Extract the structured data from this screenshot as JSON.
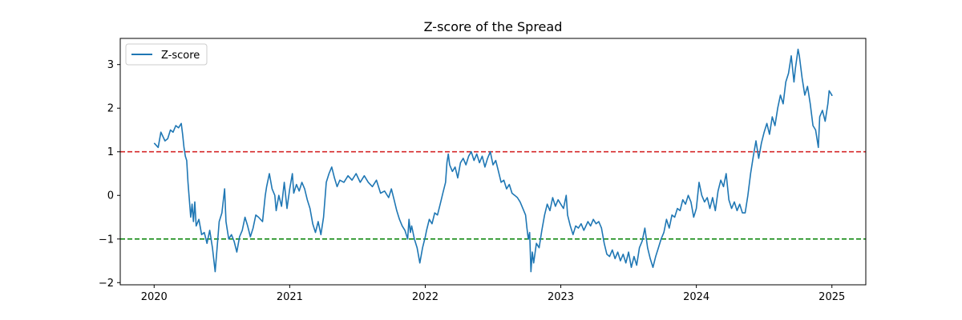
{
  "chart_data": {
    "type": "line",
    "title": "Z-score of the Spread",
    "xlabel": "",
    "ylabel": "",
    "xlim": [
      2019.75,
      2025.25
    ],
    "ylim": [
      -2.05,
      3.6
    ],
    "x_ticks": [
      2020,
      2021,
      2022,
      2023,
      2024,
      2025
    ],
    "x_tick_labels": [
      "2020",
      "2021",
      "2022",
      "2023",
      "2024",
      "2025"
    ],
    "y_ticks": [
      -2,
      -1,
      0,
      1,
      2,
      3
    ],
    "y_tick_labels": [
      "−2",
      "−1",
      "0",
      "1",
      "2",
      "3"
    ],
    "legend": {
      "position": "upper-left",
      "entries": [
        "Z-score"
      ]
    },
    "series": [
      {
        "name": "Z-score",
        "color": "#1f77b4",
        "points": [
          [
            2020.0,
            1.2
          ],
          [
            2020.03,
            1.1
          ],
          [
            2020.05,
            1.45
          ],
          [
            2020.08,
            1.25
          ],
          [
            2020.1,
            1.3
          ],
          [
            2020.12,
            1.5
          ],
          [
            2020.14,
            1.45
          ],
          [
            2020.16,
            1.6
          ],
          [
            2020.18,
            1.55
          ],
          [
            2020.2,
            1.65
          ],
          [
            2020.21,
            1.4
          ],
          [
            2020.22,
            1.1
          ],
          [
            2020.23,
            0.9
          ],
          [
            2020.24,
            0.8
          ],
          [
            2020.25,
            0.3
          ],
          [
            2020.27,
            -0.5
          ],
          [
            2020.28,
            -0.2
          ],
          [
            2020.29,
            -0.6
          ],
          [
            2020.3,
            -0.15
          ],
          [
            2020.31,
            -0.7
          ],
          [
            2020.33,
            -0.55
          ],
          [
            2020.35,
            -0.9
          ],
          [
            2020.37,
            -0.85
          ],
          [
            2020.39,
            -1.1
          ],
          [
            2020.41,
            -0.8
          ],
          [
            2020.43,
            -1.2
          ],
          [
            2020.45,
            -1.75
          ],
          [
            2020.47,
            -1.0
          ],
          [
            2020.48,
            -0.6
          ],
          [
            2020.5,
            -0.4
          ],
          [
            2020.52,
            0.15
          ],
          [
            2020.53,
            -0.6
          ],
          [
            2020.55,
            -1.0
          ],
          [
            2020.57,
            -0.9
          ],
          [
            2020.59,
            -1.05
          ],
          [
            2020.61,
            -1.3
          ],
          [
            2020.63,
            -0.95
          ],
          [
            2020.65,
            -0.8
          ],
          [
            2020.67,
            -0.5
          ],
          [
            2020.69,
            -0.7
          ],
          [
            2020.71,
            -0.95
          ],
          [
            2020.73,
            -0.75
          ],
          [
            2020.75,
            -0.45
          ],
          [
            2020.77,
            -0.5
          ],
          [
            2020.8,
            -0.6
          ],
          [
            2020.82,
            0.0
          ],
          [
            2020.83,
            0.2
          ],
          [
            2020.85,
            0.5
          ],
          [
            2020.87,
            0.15
          ],
          [
            2020.89,
            0.0
          ],
          [
            2020.9,
            -0.35
          ],
          [
            2020.92,
            0.0
          ],
          [
            2020.94,
            -0.25
          ],
          [
            2020.96,
            0.3
          ],
          [
            2020.98,
            -0.3
          ],
          [
            2021.0,
            0.15
          ],
          [
            2021.02,
            0.5
          ],
          [
            2021.03,
            0.05
          ],
          [
            2021.05,
            0.25
          ],
          [
            2021.07,
            0.1
          ],
          [
            2021.09,
            0.3
          ],
          [
            2021.11,
            0.15
          ],
          [
            2021.13,
            -0.1
          ],
          [
            2021.15,
            -0.3
          ],
          [
            2021.17,
            -0.65
          ],
          [
            2021.19,
            -0.85
          ],
          [
            2021.21,
            -0.6
          ],
          [
            2021.23,
            -0.9
          ],
          [
            2021.25,
            -0.5
          ],
          [
            2021.27,
            0.3
          ],
          [
            2021.29,
            0.5
          ],
          [
            2021.31,
            0.65
          ],
          [
            2021.33,
            0.4
          ],
          [
            2021.35,
            0.2
          ],
          [
            2021.37,
            0.35
          ],
          [
            2021.4,
            0.3
          ],
          [
            2021.43,
            0.45
          ],
          [
            2021.46,
            0.35
          ],
          [
            2021.49,
            0.5
          ],
          [
            2021.52,
            0.3
          ],
          [
            2021.55,
            0.45
          ],
          [
            2021.58,
            0.3
          ],
          [
            2021.61,
            0.2
          ],
          [
            2021.64,
            0.35
          ],
          [
            2021.67,
            0.05
          ],
          [
            2021.7,
            0.1
          ],
          [
            2021.73,
            -0.05
          ],
          [
            2021.75,
            0.15
          ],
          [
            2021.77,
            -0.1
          ],
          [
            2021.79,
            -0.35
          ],
          [
            2021.81,
            -0.55
          ],
          [
            2021.83,
            -0.7
          ],
          [
            2021.85,
            -0.8
          ],
          [
            2021.87,
            -1.0
          ],
          [
            2021.88,
            -0.55
          ],
          [
            2021.89,
            -0.85
          ],
          [
            2021.9,
            -0.7
          ],
          [
            2021.92,
            -1.0
          ],
          [
            2021.94,
            -1.2
          ],
          [
            2021.96,
            -1.55
          ],
          [
            2021.98,
            -1.2
          ],
          [
            2022.0,
            -0.95
          ],
          [
            2022.01,
            -0.8
          ],
          [
            2022.03,
            -0.55
          ],
          [
            2022.05,
            -0.65
          ],
          [
            2022.07,
            -0.4
          ],
          [
            2022.09,
            -0.45
          ],
          [
            2022.11,
            -0.2
          ],
          [
            2022.13,
            0.05
          ],
          [
            2022.15,
            0.3
          ],
          [
            2022.16,
            0.75
          ],
          [
            2022.17,
            0.95
          ],
          [
            2022.18,
            0.7
          ],
          [
            2022.2,
            0.55
          ],
          [
            2022.22,
            0.65
          ],
          [
            2022.24,
            0.4
          ],
          [
            2022.26,
            0.75
          ],
          [
            2022.28,
            0.85
          ],
          [
            2022.3,
            0.7
          ],
          [
            2022.32,
            0.9
          ],
          [
            2022.34,
            1.0
          ],
          [
            2022.36,
            0.8
          ],
          [
            2022.38,
            0.95
          ],
          [
            2022.4,
            0.75
          ],
          [
            2022.42,
            0.9
          ],
          [
            2022.44,
            0.65
          ],
          [
            2022.46,
            0.85
          ],
          [
            2022.48,
            1.0
          ],
          [
            2022.5,
            0.7
          ],
          [
            2022.52,
            0.8
          ],
          [
            2022.54,
            0.55
          ],
          [
            2022.56,
            0.3
          ],
          [
            2022.58,
            0.35
          ],
          [
            2022.6,
            0.15
          ],
          [
            2022.62,
            0.25
          ],
          [
            2022.64,
            0.05
          ],
          [
            2022.66,
            0.0
          ],
          [
            2022.68,
            -0.05
          ],
          [
            2022.7,
            -0.15
          ],
          [
            2022.72,
            -0.3
          ],
          [
            2022.74,
            -0.45
          ],
          [
            2022.75,
            -0.75
          ],
          [
            2022.76,
            -1.0
          ],
          [
            2022.77,
            -0.85
          ],
          [
            2022.78,
            -1.75
          ],
          [
            2022.79,
            -1.3
          ],
          [
            2022.8,
            -1.55
          ],
          [
            2022.82,
            -1.1
          ],
          [
            2022.84,
            -1.2
          ],
          [
            2022.86,
            -0.8
          ],
          [
            2022.88,
            -0.45
          ],
          [
            2022.9,
            -0.2
          ],
          [
            2022.92,
            -0.35
          ],
          [
            2022.94,
            -0.05
          ],
          [
            2022.96,
            -0.25
          ],
          [
            2022.98,
            -0.1
          ],
          [
            2023.0,
            -0.2
          ],
          [
            2023.02,
            -0.3
          ],
          [
            2023.04,
            0.0
          ],
          [
            2023.05,
            -0.45
          ],
          [
            2023.07,
            -0.7
          ],
          [
            2023.09,
            -0.9
          ],
          [
            2023.11,
            -0.7
          ],
          [
            2023.13,
            -0.75
          ],
          [
            2023.15,
            -0.65
          ],
          [
            2023.17,
            -0.8
          ],
          [
            2023.2,
            -0.6
          ],
          [
            2023.22,
            -0.7
          ],
          [
            2023.24,
            -0.55
          ],
          [
            2023.26,
            -0.65
          ],
          [
            2023.28,
            -0.6
          ],
          [
            2023.3,
            -0.75
          ],
          [
            2023.32,
            -1.1
          ],
          [
            2023.34,
            -1.35
          ],
          [
            2023.36,
            -1.4
          ],
          [
            2023.38,
            -1.25
          ],
          [
            2023.4,
            -1.45
          ],
          [
            2023.42,
            -1.3
          ],
          [
            2023.44,
            -1.5
          ],
          [
            2023.46,
            -1.35
          ],
          [
            2023.48,
            -1.55
          ],
          [
            2023.5,
            -1.3
          ],
          [
            2023.52,
            -1.65
          ],
          [
            2023.54,
            -1.4
          ],
          [
            2023.56,
            -1.6
          ],
          [
            2023.58,
            -1.2
          ],
          [
            2023.6,
            -1.05
          ],
          [
            2023.62,
            -0.75
          ],
          [
            2023.64,
            -1.2
          ],
          [
            2023.66,
            -1.45
          ],
          [
            2023.68,
            -1.65
          ],
          [
            2023.7,
            -1.4
          ],
          [
            2023.72,
            -1.2
          ],
          [
            2023.74,
            -1.0
          ],
          [
            2023.76,
            -0.85
          ],
          [
            2023.78,
            -0.55
          ],
          [
            2023.8,
            -0.75
          ],
          [
            2023.82,
            -0.45
          ],
          [
            2023.84,
            -0.5
          ],
          [
            2023.86,
            -0.3
          ],
          [
            2023.88,
            -0.35
          ],
          [
            2023.9,
            -0.1
          ],
          [
            2023.92,
            -0.2
          ],
          [
            2023.94,
            0.0
          ],
          [
            2023.96,
            -0.15
          ],
          [
            2023.98,
            -0.5
          ],
          [
            2024.0,
            -0.3
          ],
          [
            2024.02,
            0.3
          ],
          [
            2024.04,
            0.0
          ],
          [
            2024.06,
            -0.15
          ],
          [
            2024.08,
            -0.05
          ],
          [
            2024.1,
            -0.3
          ],
          [
            2024.12,
            -0.05
          ],
          [
            2024.14,
            -0.35
          ],
          [
            2024.16,
            0.1
          ],
          [
            2024.18,
            0.35
          ],
          [
            2024.2,
            0.2
          ],
          [
            2024.22,
            0.5
          ],
          [
            2024.24,
            -0.1
          ],
          [
            2024.26,
            -0.3
          ],
          [
            2024.28,
            -0.15
          ],
          [
            2024.3,
            -0.35
          ],
          [
            2024.32,
            -0.2
          ],
          [
            2024.34,
            -0.4
          ],
          [
            2024.36,
            -0.4
          ],
          [
            2024.38,
            0.0
          ],
          [
            2024.4,
            0.5
          ],
          [
            2024.42,
            0.9
          ],
          [
            2024.44,
            1.25
          ],
          [
            2024.46,
            0.85
          ],
          [
            2024.48,
            1.2
          ],
          [
            2024.5,
            1.45
          ],
          [
            2024.52,
            1.65
          ],
          [
            2024.54,
            1.4
          ],
          [
            2024.56,
            1.8
          ],
          [
            2024.58,
            1.6
          ],
          [
            2024.6,
            2.0
          ],
          [
            2024.62,
            2.3
          ],
          [
            2024.64,
            2.1
          ],
          [
            2024.66,
            2.6
          ],
          [
            2024.68,
            2.8
          ],
          [
            2024.7,
            3.2
          ],
          [
            2024.72,
            2.6
          ],
          [
            2024.73,
            2.9
          ],
          [
            2024.75,
            3.35
          ],
          [
            2024.76,
            3.2
          ],
          [
            2024.78,
            2.7
          ],
          [
            2024.8,
            2.3
          ],
          [
            2024.82,
            2.5
          ],
          [
            2024.84,
            2.1
          ],
          [
            2024.86,
            1.6
          ],
          [
            2024.88,
            1.5
          ],
          [
            2024.9,
            1.1
          ],
          [
            2024.91,
            1.8
          ],
          [
            2024.93,
            1.95
          ],
          [
            2024.95,
            1.7
          ],
          [
            2024.97,
            2.1
          ],
          [
            2024.98,
            2.4
          ],
          [
            2025.0,
            2.3
          ],
          [
            2025.0,
            2.28
          ]
        ]
      }
    ],
    "reference_lines": [
      {
        "y": 1,
        "color": "#d62728",
        "style": "dashed"
      },
      {
        "y": -1,
        "color": "#008000",
        "style": "dashed"
      }
    ]
  }
}
